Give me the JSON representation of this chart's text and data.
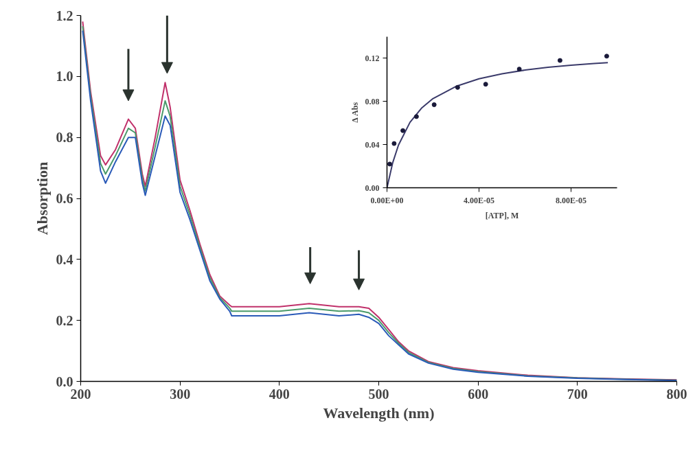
{
  "chart_data": [
    {
      "type": "line",
      "xlabel": "Wavelength (nm)",
      "ylabel": "Absorption",
      "xlim": [
        200,
        800
      ],
      "ylim": [
        0,
        1.2
      ],
      "xticks": [
        200,
        300,
        400,
        500,
        600,
        700,
        800
      ],
      "yticks": [
        {
          "value": 0,
          "label": "0.0"
        },
        {
          "value": 0.2,
          "label": "0.2"
        },
        {
          "value": 0.4,
          "label": "0.4"
        },
        {
          "value": 0.6,
          "label": "0.6"
        },
        {
          "value": 0.8,
          "label": "0.8"
        },
        {
          "value": 1.0,
          "label": "1.0"
        },
        {
          "value": 1.2,
          "label": "1.2"
        }
      ],
      "grid": false,
      "line_style": "solid",
      "marker": "none",
      "x": [
        202,
        210,
        220,
        225,
        235,
        248,
        255,
        262,
        265,
        275,
        285,
        290,
        300,
        310,
        320,
        330,
        340,
        350,
        352,
        370,
        400,
        430,
        460,
        480,
        490,
        500,
        510,
        520,
        530,
        550,
        575,
        600,
        650,
        700,
        750,
        800
      ],
      "series": [
        {
          "color": "#c0306a",
          "values": [
            1.18,
            0.95,
            0.74,
            0.71,
            0.76,
            0.86,
            0.83,
            0.68,
            0.64,
            0.8,
            0.98,
            0.9,
            0.66,
            0.56,
            0.45,
            0.35,
            0.28,
            0.25,
            0.245,
            0.245,
            0.245,
            0.255,
            0.245,
            0.245,
            0.24,
            0.21,
            0.17,
            0.13,
            0.1,
            0.065,
            0.045,
            0.035,
            0.02,
            0.012,
            0.008,
            0.005
          ]
        },
        {
          "color": "#4a9a6a",
          "values": [
            1.165,
            0.935,
            0.715,
            0.68,
            0.74,
            0.83,
            0.815,
            0.665,
            0.625,
            0.77,
            0.92,
            0.87,
            0.64,
            0.545,
            0.44,
            0.34,
            0.275,
            0.24,
            0.23,
            0.23,
            0.23,
            0.24,
            0.23,
            0.232,
            0.225,
            0.2,
            0.16,
            0.125,
            0.095,
            0.062,
            0.042,
            0.032,
            0.018,
            0.011,
            0.007,
            0.004
          ]
        },
        {
          "color": "#2a5ab8",
          "values": [
            1.15,
            0.92,
            0.69,
            0.65,
            0.72,
            0.8,
            0.8,
            0.65,
            0.61,
            0.74,
            0.87,
            0.84,
            0.62,
            0.53,
            0.43,
            0.33,
            0.27,
            0.23,
            0.215,
            0.215,
            0.215,
            0.225,
            0.215,
            0.22,
            0.21,
            0.19,
            0.15,
            0.12,
            0.09,
            0.06,
            0.04,
            0.03,
            0.017,
            0.01,
            0.006,
            0.003
          ]
        }
      ]
    },
    {
      "type": "scatter",
      "xlabel": "[ATP], M",
      "ylabel": "Δ Abs",
      "xlim": [
        0,
        0.0001
      ],
      "ylim": [
        0,
        0.14
      ],
      "xticks": [
        {
          "value": 0,
          "label": "0.00E+00"
        },
        {
          "value": 4e-05,
          "label": "4.00E-05"
        },
        {
          "value": 8e-05,
          "label": "8.00E-05"
        }
      ],
      "yticks": [
        {
          "value": 0,
          "label": "0.00"
        },
        {
          "value": 0.04,
          "label": "0.04"
        },
        {
          "value": 0.08,
          "label": "0.08"
        },
        {
          "value": 0.12,
          "label": "0.12"
        }
      ],
      "grid": false,
      "marker": "circle",
      "series": [
        {
          "type": "scatter",
          "color": "#1a1a3a",
          "x": [
            1.2e-06,
            3.1e-06,
            6.9e-06,
            1.28e-05,
            2.05e-05,
            3.07e-05,
            4.29e-05,
            5.75e-05,
            7.52e-05,
            9.55e-05
          ],
          "values": [
            0.022,
            0.041,
            0.053,
            0.066,
            0.077,
            0.093,
            0.096,
            0.11,
            0.118,
            0.122
          ]
        },
        {
          "type": "line",
          "marker": "none",
          "color": "#3a3a6a",
          "x": [
            0,
            2.5e-06,
            5e-06,
            1e-05,
            1.5e-05,
            2e-05,
            3e-05,
            4e-05,
            5e-05,
            6e-05,
            7e-05,
            8e-05,
            9e-05,
            9.6e-05
          ],
          "values": [
            0,
            0.0233,
            0.0396,
            0.0607,
            0.0738,
            0.0827,
            0.094,
            0.101,
            0.1057,
            0.1091,
            0.1117,
            0.1136,
            0.1152,
            0.116
          ]
        }
      ]
    }
  ]
}
